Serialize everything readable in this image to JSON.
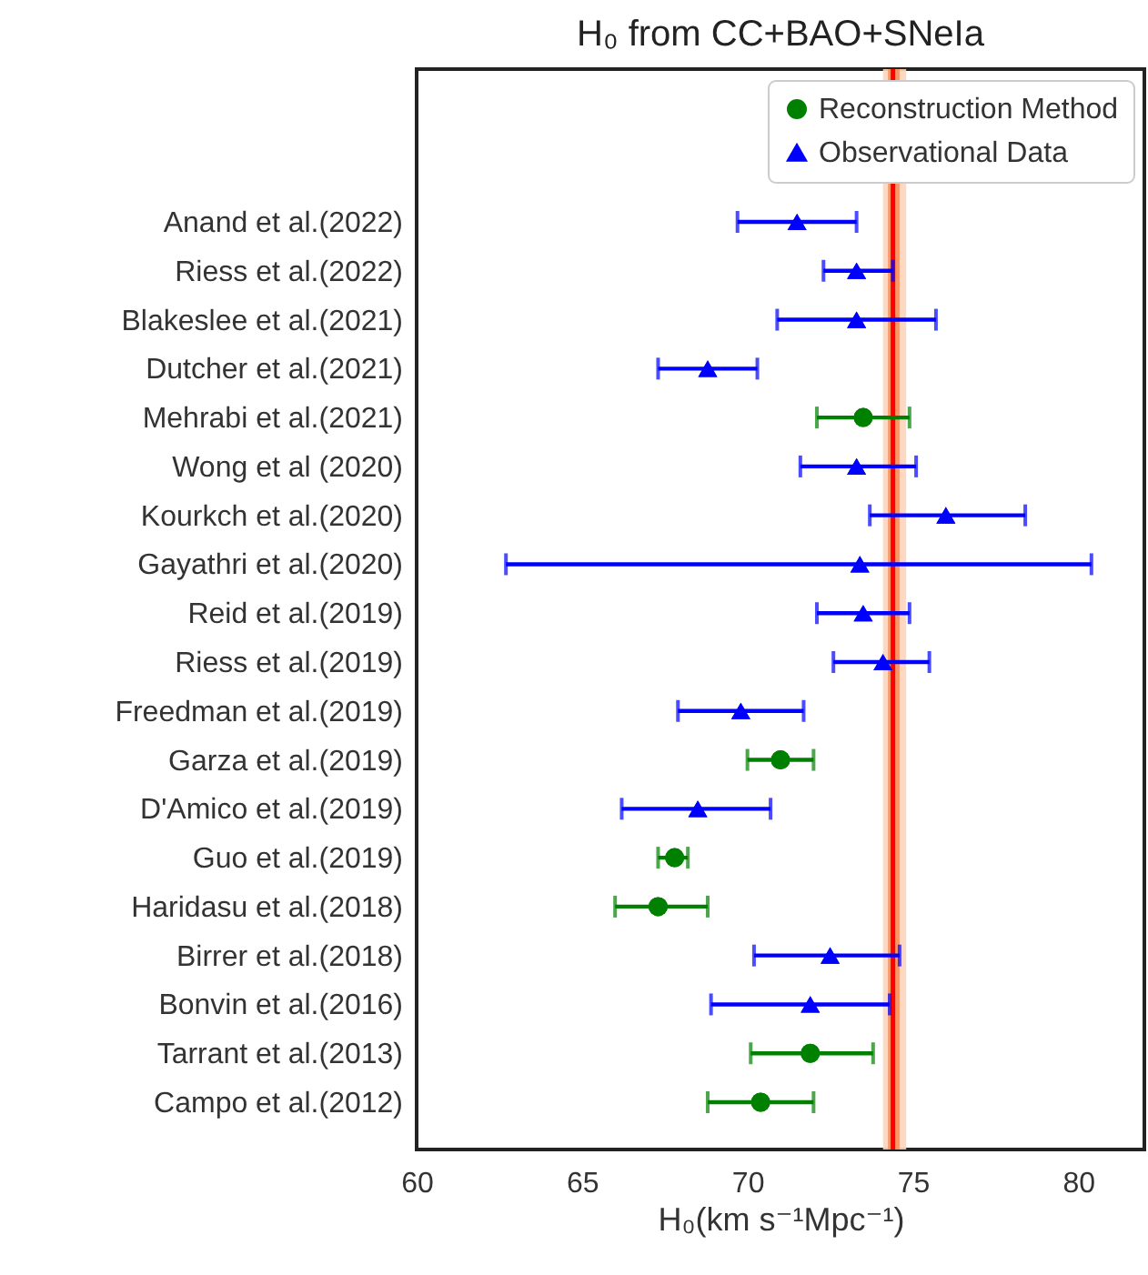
{
  "chart_data": {
    "type": "scatter",
    "orientation": "horizontal",
    "title": "H₀ from CC+BAO+SNeIa",
    "xlabel": "H₀(km s⁻¹Mpc⁻¹)",
    "categories": [
      "Anand et al.(2022)",
      "Riess et al.(2022)",
      "Blakeslee et al.(2021)",
      "Dutcher et al.(2021)",
      "Mehrabi et al.(2021)",
      "Wong et al (2020)",
      "Kourkch et al.(2020)",
      "Gayathri et al.(2020)",
      "Reid et al.(2019)",
      "Riess et al.(2019)",
      "Freedman et al.(2019)",
      "Garza et al.(2019)",
      "D'Amico et al.(2019)",
      "Guo et al.(2019)",
      "Haridasu et al.(2018)",
      "Birrer et al.(2018)",
      "Bonvin et al.(2016)",
      "Tarrant et al.(2013)",
      "Campo et al.(2012)"
    ],
    "series": [
      {
        "name": "Reconstruction Method",
        "color": "#008000",
        "marker": "circle",
        "values": [
          null,
          null,
          null,
          null,
          73.5,
          null,
          null,
          null,
          null,
          null,
          null,
          71.0,
          null,
          67.8,
          67.3,
          null,
          null,
          71.9,
          70.4
        ],
        "errors": [
          null,
          null,
          null,
          null,
          [
            72.1,
            74.9
          ],
          null,
          null,
          null,
          null,
          null,
          null,
          [
            70.0,
            72.0
          ],
          null,
          [
            67.3,
            68.2
          ],
          [
            66.0,
            68.8
          ],
          null,
          null,
          [
            70.1,
            73.8
          ],
          [
            68.8,
            72.0
          ]
        ]
      },
      {
        "name": "Observational Data",
        "color": "#0000ff",
        "marker": "triangle",
        "values": [
          71.5,
          73.3,
          73.3,
          68.8,
          null,
          73.3,
          76.0,
          73.4,
          73.5,
          74.1,
          69.8,
          null,
          68.5,
          null,
          null,
          72.5,
          71.9,
          null,
          null
        ],
        "errors": [
          [
            69.7,
            73.3
          ],
          [
            72.3,
            74.4
          ],
          [
            70.9,
            75.7
          ],
          [
            67.3,
            70.3
          ],
          null,
          [
            71.6,
            75.1
          ],
          [
            73.7,
            78.4
          ],
          [
            62.7,
            80.4
          ],
          [
            72.1,
            74.9
          ],
          [
            72.6,
            75.5
          ],
          [
            67.9,
            71.7
          ],
          null,
          [
            66.2,
            70.7
          ],
          null,
          null,
          [
            70.2,
            74.6
          ],
          [
            68.9,
            74.3
          ],
          null,
          null
        ]
      }
    ],
    "xlim": [
      60,
      82
    ],
    "xticks": [
      60,
      65,
      70,
      75,
      80
    ],
    "bands": [
      {
        "axis": "x",
        "from": 74.1,
        "to": 74.8,
        "color": "#fdd5bd"
      },
      {
        "axis": "x",
        "from": 74.25,
        "to": 74.6,
        "color": "#f6905e"
      }
    ],
    "ref_lines": [
      {
        "axis": "x",
        "value": 74.4,
        "color": "#ff0000"
      }
    ],
    "legend": "top right",
    "grid": false
  }
}
